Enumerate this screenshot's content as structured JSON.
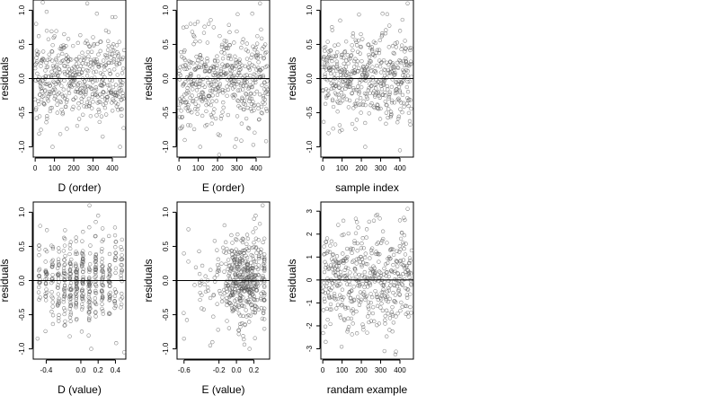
{
  "chart_data": [
    {
      "type": "scatter",
      "xlabel": "D (order)",
      "ylabel": "residuals",
      "xlim": [
        -10,
        470
      ],
      "ylim": [
        -1.15,
        1.15
      ],
      "xticks": [
        "0",
        "100",
        "200",
        "300",
        "400"
      ],
      "xtick_values": [
        0,
        100,
        200,
        300,
        400
      ],
      "yticks": [
        "-1.0",
        "-0.5",
        "0.0",
        "0.5",
        "1.0"
      ],
      "ytick_values": [
        -1.0,
        -0.5,
        0.0,
        0.5,
        1.0
      ],
      "reference_line_y": 0,
      "x_pattern": "uniform",
      "n_points": 460,
      "seed": 11,
      "y_sd": 0.32,
      "points": [
        {
          "x": 5,
          "y": 0.8
        },
        {
          "x": 60,
          "y": 0.7
        },
        {
          "x": 150,
          "y": 0.65
        },
        {
          "x": 270,
          "y": 1.1
        },
        {
          "x": 320,
          "y": 0.95
        },
        {
          "x": 90,
          "y": -1.0
        },
        {
          "x": 350,
          "y": -0.85
        },
        {
          "x": 440,
          "y": -1.0
        },
        {
          "x": 30,
          "y": -0.75
        },
        {
          "x": 400,
          "y": 0.9
        }
      ]
    },
    {
      "type": "scatter",
      "xlabel": "E (order)",
      "ylabel": "residuals",
      "xlim": [
        -10,
        470
      ],
      "ylim": [
        -1.15,
        1.15
      ],
      "xticks": [
        "0",
        "100",
        "200",
        "300",
        "400"
      ],
      "xtick_values": [
        0,
        100,
        200,
        300,
        400
      ],
      "yticks": [
        "-1.0",
        "-0.5",
        "0.0",
        "0.5",
        "1.0"
      ],
      "ytick_values": [
        -1.0,
        -0.5,
        0.0,
        0.5,
        1.0
      ],
      "reference_line_y": 0,
      "x_pattern": "uniform",
      "n_points": 460,
      "seed": 23,
      "y_sd": 0.33,
      "points": [
        {
          "x": 420,
          "y": 1.1
        },
        {
          "x": 380,
          "y": 0.95
        },
        {
          "x": 30,
          "y": -0.9
        },
        {
          "x": 110,
          "y": -1.0
        },
        {
          "x": 290,
          "y": -1.0
        },
        {
          "x": 180,
          "y": 0.75
        },
        {
          "x": 60,
          "y": 0.8
        }
      ]
    },
    {
      "type": "scatter",
      "xlabel": "sample index",
      "ylabel": "residuals",
      "xlim": [
        -10,
        470
      ],
      "ylim": [
        -1.15,
        1.15
      ],
      "xticks": [
        "0",
        "100",
        "200",
        "300",
        "400"
      ],
      "xtick_values": [
        0,
        100,
        200,
        300,
        400
      ],
      "yticks": [
        "-1.0",
        "-0.5",
        "0.0",
        "0.5",
        "1.0"
      ],
      "ytick_values": [
        -1.0,
        -0.5,
        0.0,
        0.5,
        1.0
      ],
      "reference_line_y": 0,
      "x_pattern": "uniform",
      "n_points": 460,
      "seed": 37,
      "y_sd": 0.31,
      "points": [
        {
          "x": 440,
          "y": 1.1
        },
        {
          "x": 310,
          "y": 0.95
        },
        {
          "x": 220,
          "y": -1.0
        },
        {
          "x": 400,
          "y": -1.05
        },
        {
          "x": 90,
          "y": 0.85
        },
        {
          "x": 30,
          "y": -0.8
        }
      ]
    },
    {
      "type": "scatter",
      "xlabel": "D (value)",
      "ylabel": "residuals",
      "xlim": [
        -0.55,
        0.52
      ],
      "ylim": [
        -1.15,
        1.15
      ],
      "xticks": [
        "-0.4",
        "0.0",
        "0.2",
        "0.4"
      ],
      "xtick_values": [
        -0.4,
        0.0,
        0.2,
        0.4
      ],
      "yticks": [
        "-1.0",
        "-0.5",
        "0.0",
        "0.5",
        "1.0"
      ],
      "ytick_values": [
        -1.0,
        -0.5,
        0.0,
        0.5,
        1.0
      ],
      "reference_line_y": 0,
      "x_pattern": "columns",
      "x_columns": [
        -0.48,
        -0.4,
        -0.33,
        -0.26,
        -0.19,
        -0.12,
        -0.05,
        0.02,
        0.1,
        0.17,
        0.25,
        0.33,
        0.4,
        0.47
      ],
      "x_column_weights": [
        3,
        4,
        4,
        5,
        6,
        7,
        8,
        9,
        9,
        7,
        6,
        5,
        4,
        3
      ],
      "n_points": 460,
      "seed": 41,
      "y_sd": 0.32,
      "points": [
        {
          "x": 0.1,
          "y": 1.1
        },
        {
          "x": 0.12,
          "y": -1.0
        },
        {
          "x": -0.5,
          "y": -0.85
        },
        {
          "x": 0.5,
          "y": -1.05
        },
        {
          "x": -0.47,
          "y": 0.8
        },
        {
          "x": 0.2,
          "y": 0.95
        }
      ]
    },
    {
      "type": "scatter",
      "xlabel": "E (value)",
      "ylabel": "residuals",
      "xlim": [
        -0.68,
        0.38
      ],
      "ylim": [
        -1.15,
        1.15
      ],
      "xticks": [
        "-0.6",
        "-0.2",
        "0.0",
        "0.2"
      ],
      "xtick_values": [
        -0.6,
        -0.2,
        0.0,
        0.2
      ],
      "yticks": [
        "-1.0",
        "-0.5",
        "0.0",
        "0.5",
        "1.0"
      ],
      "ytick_values": [
        -1.0,
        -0.5,
        0.0,
        0.5,
        1.0
      ],
      "reference_line_y": 0,
      "x_pattern": "skewed",
      "x_center": 0.1,
      "x_spread": 0.15,
      "x_min": -0.62,
      "x_max": 0.32,
      "n_points": 460,
      "seed": 53,
      "y_sd": 0.33,
      "points": [
        {
          "x": 0.3,
          "y": 1.1
        },
        {
          "x": 0.22,
          "y": 0.95
        },
        {
          "x": -0.6,
          "y": -0.85
        },
        {
          "x": 0.15,
          "y": -1.0
        },
        {
          "x": -0.55,
          "y": 0.75
        },
        {
          "x": -0.3,
          "y": -0.95
        }
      ]
    },
    {
      "type": "scatter",
      "xlabel": "randam example",
      "ylabel": "residuals",
      "xlim": [
        -10,
        470
      ],
      "ylim": [
        -3.45,
        3.4
      ],
      "xticks": [
        "0",
        "100",
        "200",
        "300",
        "400"
      ],
      "xtick_values": [
        0,
        100,
        200,
        300,
        400
      ],
      "yticks": [
        "-3",
        "-2",
        "-1",
        "0",
        "1",
        "2",
        "3"
      ],
      "ytick_values": [
        -3,
        -2,
        -1,
        0,
        1,
        2,
        3
      ],
      "reference_line_y": 0,
      "x_pattern": "uniform",
      "n_points": 460,
      "seed": 67,
      "y_sd": 1.0,
      "points": [
        {
          "x": 440,
          "y": 3.1
        },
        {
          "x": 320,
          "y": -3.1
        },
        {
          "x": 80,
          "y": 2.4
        },
        {
          "x": 15,
          "y": -2.7
        },
        {
          "x": 400,
          "y": 2.6
        },
        {
          "x": 230,
          "y": -2.3
        }
      ]
    }
  ]
}
